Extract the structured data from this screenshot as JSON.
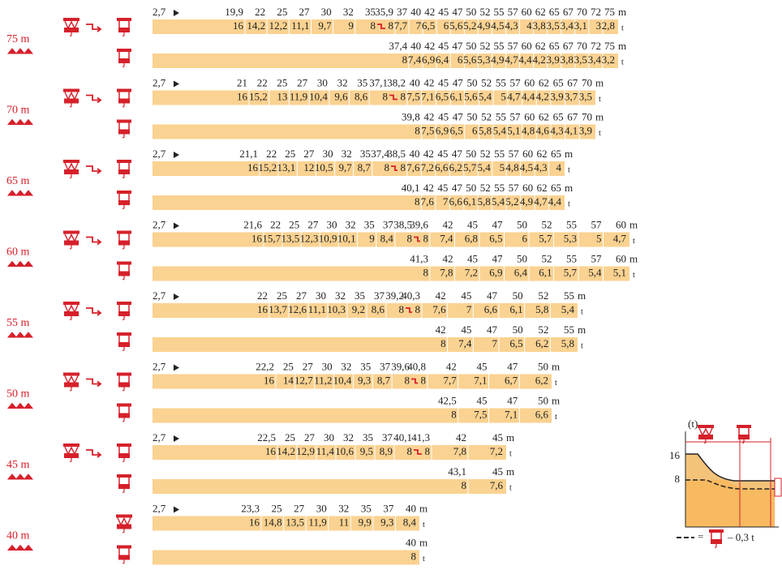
{
  "min_radius": "2,7",
  "radius_unit": "m",
  "capacity_unit": "t",
  "sections": [
    {
      "jib": "75 m",
      "row_a": {
        "radii_1": [
          "19,9",
          "22",
          "25",
          "27",
          "30",
          "32",
          "35"
        ],
        "capacities_1": [
          "16",
          "14,2",
          "12,2",
          "11,1",
          "9,7",
          "9",
          "8"
        ],
        "radii_2": [
          "35,9",
          "37",
          "40",
          "42",
          "45",
          "47",
          "50",
          "52",
          "55",
          "57",
          "60",
          "62",
          "65",
          "67",
          "70",
          "72",
          "75"
        ],
        "capacities_2": [
          "8",
          "7,7",
          "7",
          "6,5",
          "6",
          "5,6",
          "5,2",
          "4,9",
          "4,5",
          "4,3",
          "4",
          "3,8",
          "3,5",
          "3,4",
          "3,1",
          "3",
          "2,8"
        ]
      },
      "row_b": {
        "radii": [
          "37,4",
          "40",
          "42",
          "45",
          "47",
          "50",
          "52",
          "55",
          "57",
          "60",
          "62",
          "65",
          "67",
          "70",
          "72",
          "75"
        ],
        "capacities": [
          "8",
          "7,4",
          "6,9",
          "6,4",
          "6",
          "5,6",
          "5,3",
          "4,9",
          "4,7",
          "4,4",
          "4,2",
          "3,9",
          "3,8",
          "3,5",
          "3,4",
          "3,2"
        ]
      }
    },
    {
      "jib": "70 m",
      "row_a": {
        "radii_1": [
          "21",
          "22",
          "25",
          "27",
          "30",
          "32",
          "35",
          "37,1"
        ],
        "capacities_1": [
          "16",
          "15,2",
          "13",
          "11,9",
          "10,4",
          "9,6",
          "8,6",
          "8"
        ],
        "radii_2": [
          "38,2",
          "40",
          "42",
          "45",
          "47",
          "50",
          "52",
          "55",
          "57",
          "60",
          "62",
          "65",
          "67",
          "70"
        ],
        "capacities_2": [
          "8",
          "7,5",
          "7,1",
          "6,5",
          "6,1",
          "5,6",
          "5,4",
          "5",
          "4,7",
          "4,4",
          "4,2",
          "3,9",
          "3,7",
          "3,5"
        ]
      },
      "row_b": {
        "radii": [
          "39,8",
          "42",
          "45",
          "47",
          "50",
          "52",
          "55",
          "57",
          "60",
          "62",
          "65",
          "67",
          "70"
        ],
        "capacities": [
          "8",
          "7,5",
          "6,9",
          "6,5",
          "6",
          "5,8",
          "5,4",
          "5,1",
          "4,8",
          "4,6",
          "4,3",
          "4,1",
          "3,9"
        ]
      }
    },
    {
      "jib": "65 m",
      "row_a": {
        "radii_1": [
          "21,1",
          "22",
          "25",
          "27",
          "30",
          "32",
          "35",
          "37,4"
        ],
        "capacities_1": [
          "16",
          "15,2",
          "13,1",
          "12",
          "10,5",
          "9,7",
          "8,7",
          "8"
        ],
        "radii_2": [
          "38,5",
          "40",
          "42",
          "45",
          "47",
          "50",
          "52",
          "55",
          "57",
          "60",
          "62",
          "65"
        ],
        "capacities_2": [
          "8",
          "7,6",
          "7,2",
          "6,6",
          "6,2",
          "5,7",
          "5,4",
          "5",
          "4,8",
          "4,5",
          "4,3",
          "4"
        ]
      },
      "row_b": {
        "radii": [
          "40,1",
          "42",
          "45",
          "47",
          "50",
          "52",
          "55",
          "57",
          "60",
          "62",
          "65"
        ],
        "capacities": [
          "8",
          "7,6",
          "7",
          "6,6",
          "6,1",
          "5,8",
          "5,4",
          "5,2",
          "4,9",
          "4,7",
          "4,4"
        ]
      }
    },
    {
      "jib": "60 m",
      "row_a": {
        "radii_1": [
          "21,6",
          "22",
          "25",
          "27",
          "30",
          "32",
          "35",
          "37",
          "38,5"
        ],
        "capacities_1": [
          "16",
          "15,7",
          "13,5",
          "12,3",
          "10,9",
          "10,1",
          "9",
          "8,4",
          "8"
        ],
        "radii_2": [
          "39,6",
          "42",
          "45",
          "47",
          "50",
          "52",
          "55",
          "57",
          "60"
        ],
        "capacities_2": [
          "8",
          "7,4",
          "6,8",
          "6,5",
          "6",
          "5,7",
          "5,3",
          "5",
          "4,7"
        ]
      },
      "row_b": {
        "radii": [
          "41,3",
          "42",
          "45",
          "47",
          "50",
          "52",
          "55",
          "57",
          "60"
        ],
        "capacities": [
          "8",
          "7,8",
          "7,2",
          "6,9",
          "6,4",
          "6,1",
          "5,7",
          "5,4",
          "5,1"
        ]
      }
    },
    {
      "jib": "55 m",
      "row_a": {
        "radii_1": [
          "22",
          "25",
          "27",
          "30",
          "32",
          "35",
          "37",
          "39,2"
        ],
        "capacities_1": [
          "16",
          "13,7",
          "12,6",
          "11,1",
          "10,3",
          "9,2",
          "8,6",
          "8"
        ],
        "radii_2": [
          "40,3",
          "42",
          "45",
          "47",
          "50",
          "52",
          "55"
        ],
        "capacities_2": [
          "8",
          "7,6",
          "7",
          "6,6",
          "6,1",
          "5,8",
          "5,4"
        ]
      },
      "row_b": {
        "radii": [
          "42",
          "45",
          "47",
          "50",
          "52",
          "55"
        ],
        "capacities": [
          "8",
          "7,4",
          "7",
          "6,5",
          "6,2",
          "5,8"
        ]
      }
    },
    {
      "jib": "50 m",
      "row_a": {
        "radii_1": [
          "22,2",
          "25",
          "27",
          "30",
          "32",
          "35",
          "37",
          "39,6"
        ],
        "capacities_1": [
          "16",
          "14",
          "12,7",
          "11,2",
          "10,4",
          "9,3",
          "8,7",
          "8"
        ],
        "radii_2": [
          "40,8",
          "42",
          "45",
          "47",
          "50"
        ],
        "capacities_2": [
          "8",
          "7,7",
          "7,1",
          "6,7",
          "6,2"
        ]
      },
      "row_b": {
        "radii": [
          "42,5",
          "45",
          "47",
          "50"
        ],
        "capacities": [
          "8",
          "7,5",
          "7,1",
          "6,6"
        ]
      }
    },
    {
      "jib": "45 m",
      "row_a": {
        "radii_1": [
          "22,5",
          "25",
          "27",
          "30",
          "32",
          "35",
          "37",
          "40,1"
        ],
        "capacities_1": [
          "16",
          "14,2",
          "12,9",
          "11,4",
          "10,6",
          "9,5",
          "8,9",
          "8"
        ],
        "radii_2": [
          "41,3",
          "42",
          "45"
        ],
        "capacities_2": [
          "8",
          "7,8",
          "7,2"
        ]
      },
      "row_b": {
        "radii": [
          "43,1",
          "45"
        ],
        "capacities": [
          "8",
          "7,6"
        ]
      }
    },
    {
      "jib": "40 m",
      "row_a": {
        "radii_1": [
          "23,3",
          "25",
          "27",
          "30",
          "32",
          "35",
          "37",
          "40"
        ],
        "capacities_1": [
          "16",
          "14,8",
          "13,5",
          "11,9",
          "11",
          "9,9",
          "9,3",
          "8,4"
        ]
      },
      "row_b": {
        "radii": [
          "40"
        ],
        "capacities": [
          "8"
        ]
      }
    }
  ],
  "inset": {
    "y_label": "(t)",
    "ticks": [
      "16",
      "8"
    ],
    "legend_prefix": "=",
    "legend_suffix": "– 0,3 t"
  }
}
